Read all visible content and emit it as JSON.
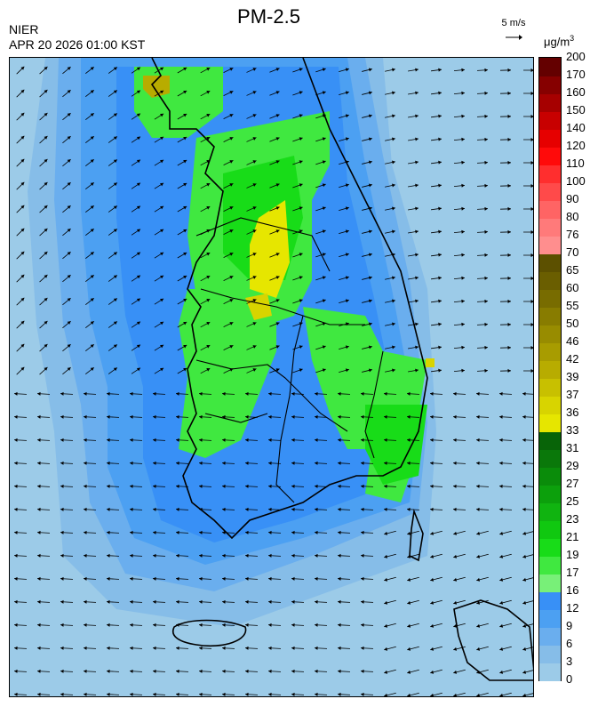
{
  "header": {
    "title": "PM-2.5",
    "org": "NIER",
    "datetime": "APR 20 2026 01:00 KST",
    "wind_reference": "5 m/s",
    "unit_base": "μg/m",
    "unit_exp": "3"
  },
  "legend": {
    "labels": [
      "0",
      "3",
      "6",
      "9",
      "12",
      "16",
      "17",
      "19",
      "21",
      "23",
      "25",
      "27",
      "29",
      "31",
      "33",
      "36",
      "37",
      "39",
      "42",
      "46",
      "50",
      "55",
      "60",
      "65",
      "70",
      "76",
      "80",
      "90",
      "100",
      "110",
      "120",
      "140",
      "150",
      "160",
      "170",
      "200"
    ],
    "colors": [
      "#9ccbe8",
      "#86bde8",
      "#6aaeee",
      "#4ca0f2",
      "#3890f6",
      "#78f078",
      "#40e840",
      "#18dc18",
      "#10c810",
      "#10b410",
      "#0ca00c",
      "#0a8c0a",
      "#0a780a",
      "#086408",
      "#e6e600",
      "#d8d400",
      "#c8c000",
      "#b8ac00",
      "#a89c00",
      "#988c00",
      "#887c00",
      "#786c00",
      "#6a5e00",
      "#5c5000",
      "#ff8e8e",
      "#ff7a7a",
      "#ff6464",
      "#ff4a4a",
      "#ff2e2e",
      "#ff0a0a",
      "#e60000",
      "#c80000",
      "#a60000",
      "#860000",
      "#640000"
    ]
  },
  "map": {
    "background": "#9ccbe8",
    "region": "South Korea",
    "field_colors": {
      "background": "#9ccbe8",
      "mid": "#86bde8",
      "low_blue": "#6aaeee",
      "blue": "#4ca0f2",
      "deep_blue": "#3890f6",
      "light_green": "#78f078",
      "green": "#40e840",
      "dark_green": "#18dc18",
      "yellow": "#e6e600",
      "olive": "#b8ac00"
    }
  }
}
